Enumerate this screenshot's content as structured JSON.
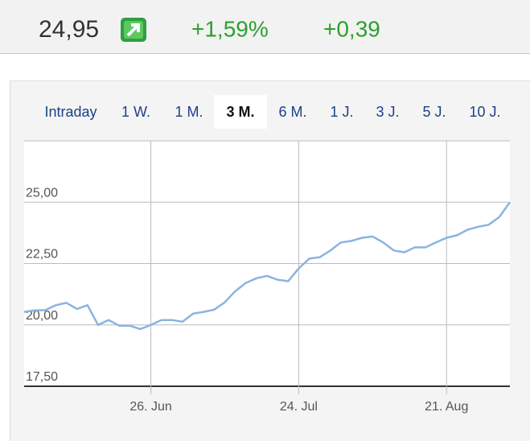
{
  "header": {
    "price": "24,95",
    "change_percent": "+1,59%",
    "change": "+0,39"
  },
  "tabs": [
    "Intraday",
    "1 W.",
    "1 M.",
    "3 M.",
    "6 M.",
    "1 J.",
    "3 J.",
    "5 J.",
    "10 J."
  ],
  "active_tab": 3,
  "chart_data": {
    "type": "line",
    "categories": [
      null,
      null,
      null,
      null,
      null,
      null,
      null,
      null,
      null,
      null,
      null,
      null,
      "26. Jun",
      null,
      null,
      null,
      null,
      null,
      null,
      null,
      null,
      null,
      null,
      null,
      null,
      null,
      "24. Jul",
      null,
      null,
      null,
      null,
      null,
      null,
      null,
      null,
      null,
      null,
      null,
      null,
      null,
      "21. Aug",
      null,
      null,
      null,
      null,
      null,
      null
    ],
    "series": [
      {
        "color": "#8ab4e0",
        "values": [
          20.53,
          20.59,
          20.6,
          20.8,
          20.9,
          20.65,
          20.8,
          20.0,
          20.2,
          19.97,
          19.97,
          19.83,
          20.0,
          20.2,
          20.2,
          20.13,
          20.46,
          20.53,
          20.62,
          20.92,
          21.38,
          21.71,
          21.9,
          22.0,
          21.84,
          21.78,
          22.3,
          22.7,
          22.76,
          23.03,
          23.36,
          23.42,
          23.55,
          23.6,
          23.36,
          23.03,
          22.96,
          23.16,
          23.16,
          23.36,
          23.55,
          23.65,
          23.88,
          24.0,
          24.08,
          24.4,
          25.0
        ]
      }
    ],
    "ylim": [
      17.5,
      27.5
    ],
    "yticks": [
      {
        "value": 17.5,
        "label": "17,50"
      },
      {
        "value": 20,
        "label": "20,00"
      },
      {
        "value": 22.5,
        "label": "22,50"
      },
      {
        "value": 25,
        "label": "25,00"
      }
    ],
    "grid": true
  }
}
